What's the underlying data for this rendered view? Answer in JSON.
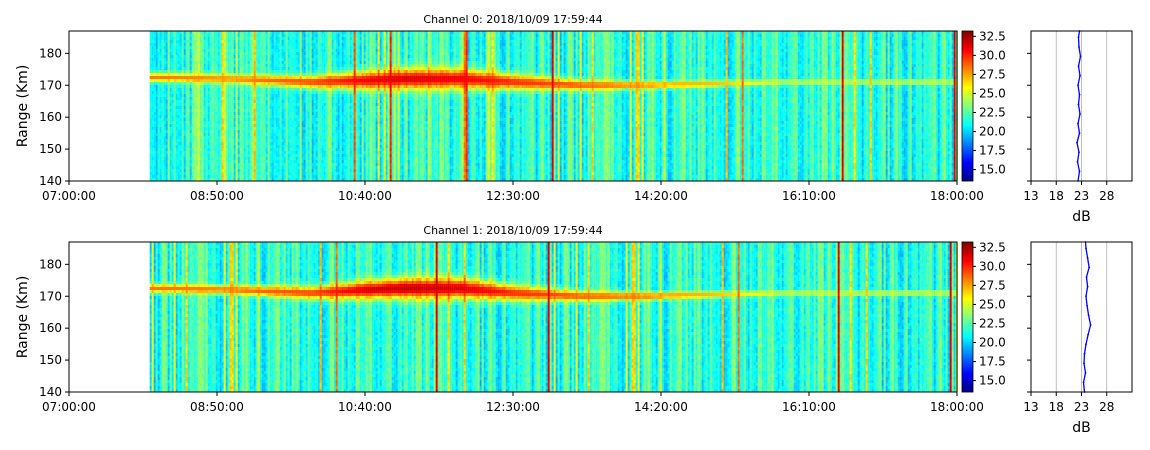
{
  "chart_data": [
    {
      "type": "heatmap",
      "title": "Channel 0: 2018/10/09 17:59:44",
      "ylabel": "Range (Km)",
      "x_tick_labels": [
        "07:00:00",
        "08:50:00",
        "10:40:00",
        "12:30:00",
        "14:20:00",
        "16:10:00",
        "18:00:00"
      ],
      "x_range_minutes": [
        0,
        660
      ],
      "data_start_minute": 60,
      "y_ticks": [
        140,
        150,
        160,
        170,
        180
      ],
      "ylim": [
        140,
        187
      ],
      "colorbar": {
        "ticks": [
          "15.0",
          "17.5",
          "20.0",
          "22.5",
          "25.0",
          "27.5",
          "30.0",
          "32.5"
        ],
        "range": [
          13.5,
          33.2
        ],
        "colormap": "jet"
      },
      "echo_layer": [
        {
          "minute": 60,
          "center_km": 172.5,
          "width_km": 3.5,
          "peak_db": 28.5
        },
        {
          "minute": 120,
          "center_km": 172,
          "width_km": 3.5,
          "peak_db": 28
        },
        {
          "minute": 180,
          "center_km": 171,
          "width_km": 5,
          "peak_db": 29.5
        },
        {
          "minute": 220,
          "center_km": 171.5,
          "width_km": 7,
          "peak_db": 31
        },
        {
          "minute": 250,
          "center_km": 172,
          "width_km": 8,
          "peak_db": 31.5
        },
        {
          "minute": 290,
          "center_km": 172,
          "width_km": 8,
          "peak_db": 31
        },
        {
          "minute": 330,
          "center_km": 171,
          "width_km": 6,
          "peak_db": 30
        },
        {
          "minute": 380,
          "center_km": 170,
          "width_km": 4,
          "peak_db": 29
        },
        {
          "minute": 430,
          "center_km": 170,
          "width_km": 3,
          "peak_db": 28
        },
        {
          "minute": 480,
          "center_km": 170.5,
          "width_km": 2.5,
          "peak_db": 27
        },
        {
          "minute": 530,
          "center_km": 171,
          "width_km": 2,
          "peak_db": 25
        }
      ],
      "profile": {
        "xlabel": "dB",
        "x_ticks": [
          13,
          18,
          23,
          28
        ],
        "xlim": [
          13,
          33
        ],
        "color": "#0000ff",
        "points": [
          [
            22.3,
            140
          ],
          [
            22.6,
            143
          ],
          [
            22.2,
            146
          ],
          [
            22.5,
            149
          ],
          [
            22.1,
            152
          ],
          [
            22.6,
            155
          ],
          [
            22.3,
            158
          ],
          [
            22.7,
            161
          ],
          [
            22.4,
            164
          ],
          [
            22.6,
            167
          ],
          [
            22.3,
            170
          ],
          [
            22.7,
            173
          ],
          [
            22.4,
            176
          ],
          [
            22.8,
            179
          ],
          [
            22.5,
            182
          ],
          [
            22.4,
            185
          ],
          [
            22.6,
            187
          ]
        ]
      }
    },
    {
      "type": "heatmap",
      "title": "Channel 1: 2018/10/09 17:59:44",
      "ylabel": "Range (Km)",
      "x_tick_labels": [
        "07:00:00",
        "08:50:00",
        "10:40:00",
        "12:30:00",
        "14:20:00",
        "16:10:00",
        "18:00:00"
      ],
      "x_range_minutes": [
        0,
        660
      ],
      "data_start_minute": 60,
      "y_ticks": [
        140,
        150,
        160,
        170,
        180
      ],
      "ylim": [
        140,
        187
      ],
      "colorbar": {
        "ticks": [
          "15.0",
          "17.5",
          "20.0",
          "22.5",
          "25.0",
          "27.5",
          "30.0",
          "32.5"
        ],
        "range": [
          13.5,
          33.2
        ],
        "colormap": "jet"
      },
      "echo_layer": [
        {
          "minute": 60,
          "center_km": 172.5,
          "width_km": 3.5,
          "peak_db": 28.5
        },
        {
          "minute": 120,
          "center_km": 172,
          "width_km": 3.5,
          "peak_db": 28.5
        },
        {
          "minute": 180,
          "center_km": 171,
          "width_km": 5,
          "peak_db": 29.5
        },
        {
          "minute": 220,
          "center_km": 172,
          "width_km": 7,
          "peak_db": 31.5
        },
        {
          "minute": 250,
          "center_km": 172.5,
          "width_km": 8,
          "peak_db": 32
        },
        {
          "minute": 290,
          "center_km": 172.5,
          "width_km": 8,
          "peak_db": 31.5
        },
        {
          "minute": 330,
          "center_km": 171,
          "width_km": 6,
          "peak_db": 30
        },
        {
          "minute": 380,
          "center_km": 170,
          "width_km": 4,
          "peak_db": 29
        },
        {
          "minute": 430,
          "center_km": 170,
          "width_km": 3,
          "peak_db": 28.5
        },
        {
          "minute": 480,
          "center_km": 170.5,
          "width_km": 2.5,
          "peak_db": 27
        },
        {
          "minute": 530,
          "center_km": 171,
          "width_km": 2,
          "peak_db": 25
        }
      ],
      "profile": {
        "xlabel": "dB",
        "x_ticks": [
          13,
          18,
          23,
          28
        ],
        "xlim": [
          13,
          33
        ],
        "color": "#0000ff",
        "points": [
          [
            23.6,
            140
          ],
          [
            23.4,
            143
          ],
          [
            23.8,
            146
          ],
          [
            23.5,
            149
          ],
          [
            23.6,
            152
          ],
          [
            23.9,
            155
          ],
          [
            24.3,
            158
          ],
          [
            24.8,
            161
          ],
          [
            24.4,
            164
          ],
          [
            24.1,
            167
          ],
          [
            23.9,
            170
          ],
          [
            24.2,
            173
          ],
          [
            24.0,
            176
          ],
          [
            24.5,
            179
          ],
          [
            24.2,
            182
          ],
          [
            23.9,
            185
          ],
          [
            23.8,
            187
          ]
        ]
      }
    }
  ]
}
